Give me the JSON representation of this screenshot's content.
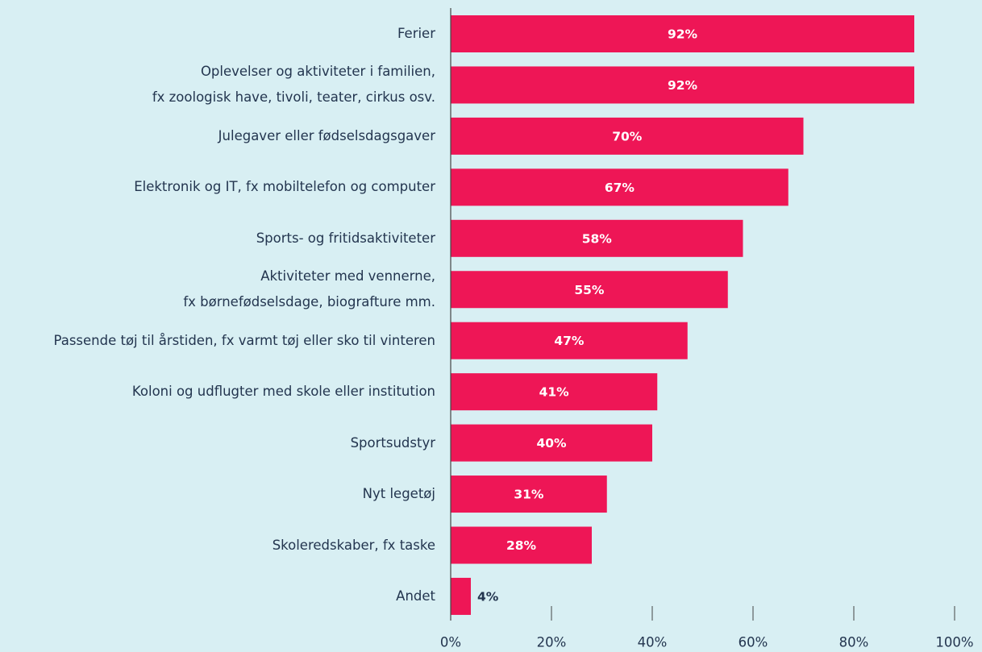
{
  "chart_data": {
    "type": "barh",
    "categories": [
      "Ferier",
      "Oplevelser og aktiviteter i familien,\nfx zoologisk have, tivoli, teater, cirkus osv.",
      "Julegaver eller fødselsdagsgaver",
      "Elektronik og IT, fx mobiltelefon og computer",
      "Sports- og fritidsaktiviteter",
      "Aktiviteter med vennerne,\nfx børnefødselsdage, biografture mm.",
      "Passende tøj til årstiden, fx varmt tøj eller sko til vinteren",
      "Koloni og udflugter med skole eller institution",
      "Sportsudstyr",
      "Nyt legetøj",
      "Skoleredskaber, fx taske",
      "Andet"
    ],
    "values": [
      92,
      92,
      70,
      67,
      58,
      55,
      47,
      41,
      40,
      31,
      28,
      4
    ],
    "value_labels": [
      "92%",
      "92%",
      "70%",
      "67%",
      "58%",
      "55%",
      "47%",
      "41%",
      "40%",
      "31%",
      "28%",
      "4%"
    ],
    "color": "#ee1656",
    "xlim": [
      0,
      100
    ],
    "xticks": [
      {
        "value": 0,
        "label": "0%"
      },
      {
        "value": 20,
        "label": "20%"
      },
      {
        "value": 40,
        "label": "40%"
      },
      {
        "value": 60,
        "label": "60%"
      },
      {
        "value": 80,
        "label": "80%"
      },
      {
        "value": 100,
        "label": "100%"
      }
    ]
  }
}
